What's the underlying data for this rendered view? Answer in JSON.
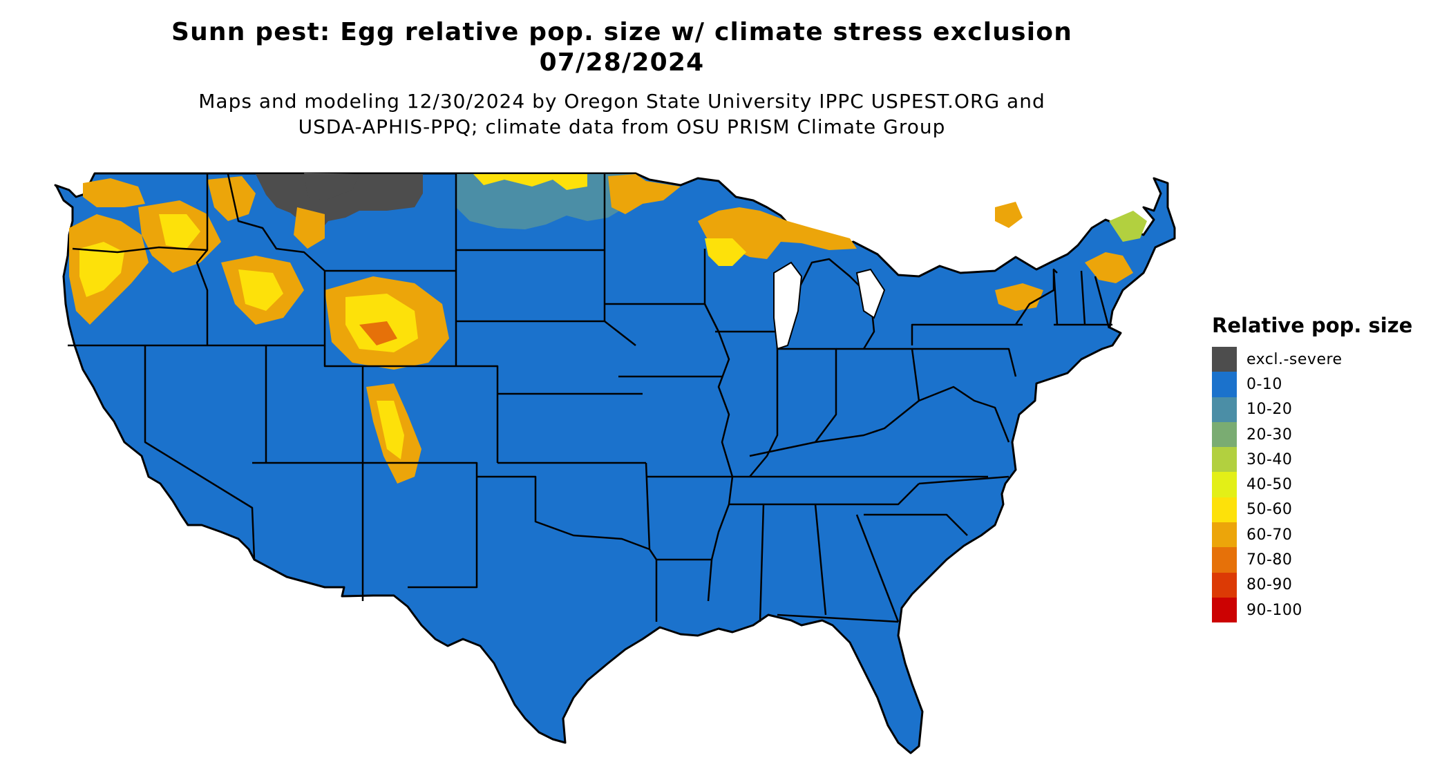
{
  "header": {
    "title_line1": "Sunn pest: Egg relative pop. size w/ climate stress exclusion",
    "title_line2": "07/28/2024",
    "subtitle_line1": "Maps and modeling 12/30/2024 by Oregon State University IPPC USPEST.ORG and",
    "subtitle_line2": "USDA-APHIS-PPQ; climate data from OSU PRISM Climate Group"
  },
  "legend": {
    "title": "Relative pop. size",
    "items": [
      {
        "label": "excl.-severe",
        "color": "#4d4d4d"
      },
      {
        "label": "0-10",
        "color": "#1b72cc"
      },
      {
        "label": "10-20",
        "color": "#4b8ea6"
      },
      {
        "label": "20-30",
        "color": "#7aac72"
      },
      {
        "label": "30-40",
        "color": "#b2d03f"
      },
      {
        "label": "40-50",
        "color": "#e3ef17"
      },
      {
        "label": "50-60",
        "color": "#fde10a"
      },
      {
        "label": "60-70",
        "color": "#eca50a"
      },
      {
        "label": "70-80",
        "color": "#e67109"
      },
      {
        "label": "80-90",
        "color": "#dc3a05"
      },
      {
        "label": "90-100",
        "color": "#cc0202"
      }
    ]
  },
  "map": {
    "base_category": "0-10",
    "region": "Contiguous United States"
  }
}
